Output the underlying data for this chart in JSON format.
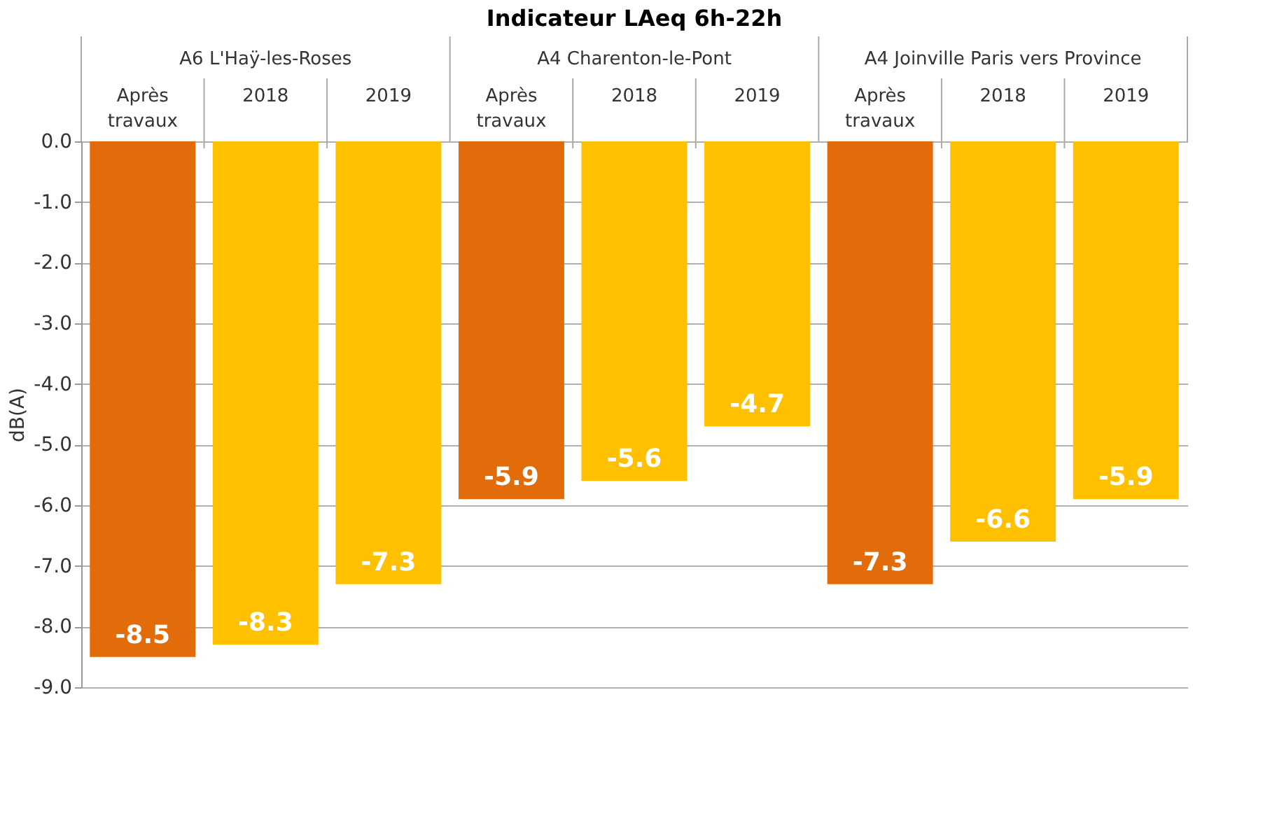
{
  "chart_data": {
    "type": "bar",
    "title": "Indicateur LAeq 6h-22h",
    "ylabel": "dB(A)",
    "categories": [
      "Après travaux",
      "2018",
      "2019",
      "Après travaux",
      "2018",
      "2019",
      "Après travaux",
      "2018",
      "2019"
    ],
    "values": [
      -8.5,
      -8.3,
      -7.3,
      -5.9,
      -5.6,
      -4.7,
      -7.3,
      -6.6,
      -5.9
    ],
    "colors": [
      "#e36c0a",
      "#ffc000",
      "#ffc000",
      "#e36c0a",
      "#ffc000",
      "#ffc000",
      "#e36c0a",
      "#ffc000",
      "#ffc000"
    ],
    "annotations": [
      "A6 L'Haÿ-les-Roses",
      "A4 Charenton-le-Pont",
      "A4 Joinville Paris vers Province"
    ],
    "ylim": [
      -9,
      0
    ],
    "yticks": [
      {
        "value": 0,
        "label": "0.0"
      },
      {
        "value": -1,
        "label": "-1.0"
      },
      {
        "value": -2,
        "label": "-2.0"
      },
      {
        "value": -3,
        "label": "-3.0"
      },
      {
        "value": -4,
        "label": "-4.0"
      },
      {
        "value": -5,
        "label": "-5.0"
      },
      {
        "value": -6,
        "label": "-6.0"
      },
      {
        "value": -7,
        "label": "-7.0"
      },
      {
        "value": -8,
        "label": "-8.0"
      },
      {
        "value": -9,
        "label": "-9.0"
      }
    ],
    "grid": "y",
    "data_labels": true
  }
}
